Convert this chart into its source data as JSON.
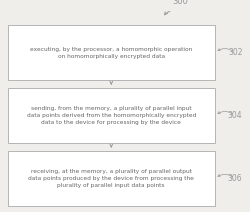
{
  "background_color": "#f0eeea",
  "box_fill": "#ffffff",
  "box_edge": "#aaaaaa",
  "arrow_color": "#999999",
  "text_color": "#666666",
  "label_color": "#999999",
  "top_label": "300",
  "boxes": [
    {
      "label": "302",
      "text": "executing, by the processor, a homomorphic operation\non homomorphically encrypted data"
    },
    {
      "label": "304",
      "text": "sending, from the memory, a plurality of parallel input\ndata points derived from the homomorphically encrypted\ndata to the device for processing by the device"
    },
    {
      "label": "306",
      "text": "receiving, at the memory, a plurality of parallel output\ndata points produced by the device from processing the\nplurality of parallel input data points"
    }
  ],
  "fig_width": 2.5,
  "fig_height": 2.12,
  "dpi": 100
}
